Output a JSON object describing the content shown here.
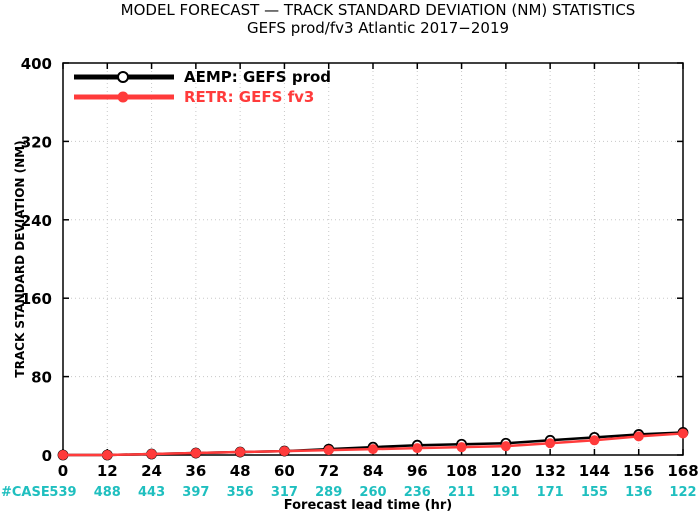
{
  "chart_data": {
    "type": "line",
    "title": "MODEL FORECAST — TRACK STANDARD DEVIATION (NM) STATISTICS",
    "subtitle": "GEFS prod/fv3 Atlantic 2017−2019",
    "ylabel": "TRACK STANDARD DEVIATION (NM)",
    "xlabel": "Forecast lead time (hr)",
    "x": [
      0,
      12,
      24,
      36,
      48,
      60,
      72,
      84,
      96,
      108,
      120,
      132,
      144,
      156,
      168
    ],
    "x_tick_labels": [
      "0",
      "12",
      "24",
      "36",
      "48",
      "60",
      "72",
      "84",
      "96",
      "108",
      "120",
      "132",
      "144",
      "156",
      "168"
    ],
    "y_ticks": [
      0,
      80,
      160,
      240,
      320,
      400
    ],
    "y_tick_labels": [
      "0",
      "80",
      "160",
      "240",
      "320",
      "400"
    ],
    "xlim": [
      0,
      168
    ],
    "ylim": [
      0,
      400
    ],
    "grid": true,
    "legend_position": "top-left",
    "series": [
      {
        "name": "AEMP: GEFS prod",
        "color": "#000000",
        "marker": "open-circle",
        "values": [
          0,
          0,
          1,
          2,
          3,
          4,
          6,
          8,
          10,
          11,
          12,
          15,
          18,
          21,
          23
        ]
      },
      {
        "name": "RETR: GEFS fv3",
        "color": "#ff3b3b",
        "marker": "filled-circle",
        "values": [
          0,
          0,
          1,
          2,
          3,
          4,
          5,
          6,
          7,
          8,
          9,
          12,
          15,
          19,
          22
        ]
      }
    ],
    "case_label": "#CASE",
    "case_counts": [
      "539",
      "488",
      "443",
      "397",
      "356",
      "317",
      "289",
      "260",
      "236",
      "211",
      "191",
      "171",
      "155",
      "136",
      "122"
    ],
    "case_color": "#1fbfbf"
  }
}
